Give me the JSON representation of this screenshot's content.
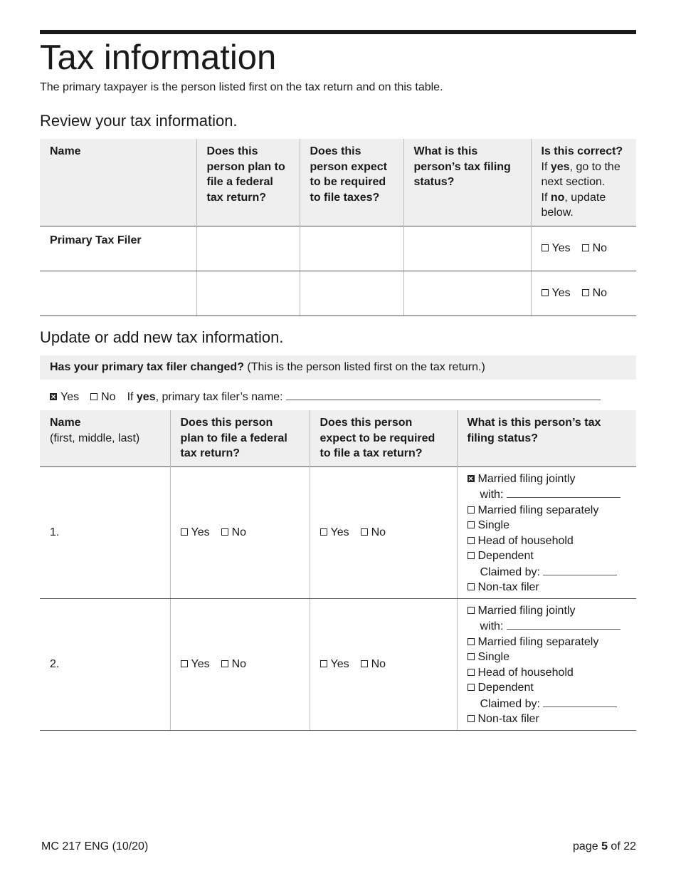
{
  "title": "Tax information",
  "intro": "The primary taxpayer is the person listed first on the tax return and on this table.",
  "review": {
    "heading": "Review your tax information.",
    "headers": [
      "Name",
      "Does this person plan to file a federal tax return?",
      "Does this person expect to be required to file taxes?",
      "What is this person’s tax filing status?"
    ],
    "correct_header": {
      "q": "Is this correct?",
      "if1": "If ",
      "yes": "yes",
      "rest1": ", go to the next section.",
      "if2": "If ",
      "no": "no",
      "rest2": ", update below."
    },
    "rows": [
      {
        "name": "Primary Tax Filer",
        "yes_label": "Yes",
        "no_label": "No",
        "yes_checked": false,
        "no_checked": false
      },
      {
        "name": "",
        "yes_label": "Yes",
        "no_label": "No",
        "yes_checked": false,
        "no_checked": false
      }
    ]
  },
  "update": {
    "heading": "Update or add new tax information.",
    "question_bold": "Has your primary tax filer changed?",
    "question_rest": " (This is the person listed first on the tax return.)",
    "answer": {
      "yes_label": "Yes",
      "no_label": "No",
      "yes_checked": true,
      "no_checked": false,
      "if": "If ",
      "yes_word": "yes",
      "rest": ", primary tax filer’s name:",
      "name_value": ""
    },
    "headers": {
      "name": "Name",
      "name_sub": "(first, middle, last)",
      "plan": "Does this person plan to file a federal tax return?",
      "expect": "Does this person expect to be required to file a tax return?",
      "status": "What is this person’s tax filing status?"
    },
    "rows": [
      {
        "num": "1.",
        "plan_yes": false,
        "plan_no": false,
        "expect_yes": false,
        "expect_no": false,
        "status": {
          "mfj": true,
          "mfs": false,
          "single": false,
          "hoh": false,
          "dep": false,
          "ntf": false
        },
        "with_value": "",
        "claimed_value": ""
      },
      {
        "num": "2.",
        "plan_yes": false,
        "plan_no": false,
        "expect_yes": false,
        "expect_no": false,
        "status": {
          "mfj": false,
          "mfs": false,
          "single": false,
          "hoh": false,
          "dep": false,
          "ntf": false
        },
        "with_value": "",
        "claimed_value": ""
      }
    ],
    "labels": {
      "yes": "Yes",
      "no": "No",
      "mfj": "Married filing jointly",
      "with": "with:",
      "mfs": "Married filing separately",
      "single": "Single",
      "hoh": "Head of household",
      "dep": "Dependent",
      "claimed": "Claimed by:",
      "ntf": "Non-tax filer"
    }
  },
  "footer": {
    "form_id": "MC 217 ENG (10/20)",
    "page_prefix": "page ",
    "page": "5",
    "page_mid": " of ",
    "total": "22"
  }
}
